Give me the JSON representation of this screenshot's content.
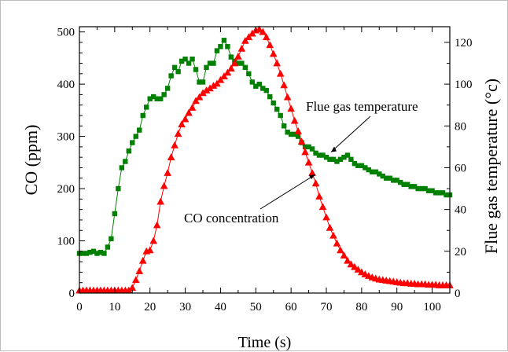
{
  "chart_data": {
    "type": "line",
    "title": "",
    "xlabel": "Time (s)",
    "ylabel": "CO  (ppm)",
    "ylabel_right": "Flue gas temperature (°c)",
    "xlim": [
      0,
      105
    ],
    "ylim": [
      0,
      510
    ],
    "ylim_right": [
      0,
      127.5
    ],
    "x_ticks": [
      "0",
      "10",
      "20",
      "30",
      "40",
      "50",
      "60",
      "70",
      "80",
      "90",
      "100"
    ],
    "y_ticks": [
      "0",
      "100",
      "200",
      "300",
      "400",
      "500"
    ],
    "y_ticks_right": [
      "0",
      "20",
      "40",
      "60",
      "80",
      "100",
      "120"
    ],
    "grid": false,
    "colors": {
      "temperature": "#008000",
      "co": "#ff0000"
    },
    "annotations": [
      {
        "text": "Flue gas temperature",
        "points_to": "Flue gas temperature series"
      },
      {
        "text": "CO concentration",
        "points_to": "CO concentration series"
      }
    ],
    "series": [
      {
        "name": "Flue gas temperature",
        "axis": "right",
        "marker": "square",
        "x": [
          0,
          1,
          2,
          3,
          4,
          5,
          6,
          7,
          8,
          9,
          10,
          11,
          12,
          13,
          14,
          15,
          16,
          17,
          18,
          19,
          20,
          21,
          22,
          23,
          24,
          25,
          26,
          27,
          28,
          29,
          30,
          31,
          32,
          33,
          34,
          35,
          36,
          37,
          38,
          39,
          40,
          41,
          42,
          43,
          44,
          45,
          46,
          47,
          48,
          49,
          50,
          51,
          52,
          53,
          54,
          55,
          56,
          57,
          58,
          59,
          60,
          61,
          62,
          63,
          64,
          65,
          66,
          67,
          68,
          69,
          70,
          71,
          72,
          73,
          74,
          75,
          76,
          77,
          78,
          79,
          80,
          81,
          82,
          83,
          84,
          85,
          86,
          87,
          88,
          89,
          90,
          91,
          92,
          93,
          94,
          95,
          96,
          97,
          98,
          99,
          100,
          101,
          102,
          103,
          104,
          105
        ],
        "y": [
          19,
          19,
          19,
          19.5,
          20,
          19,
          19.5,
          19,
          22,
          26,
          38,
          50,
          60,
          63,
          68,
          72,
          75,
          78,
          85,
          89,
          93,
          94,
          93,
          93,
          95,
          98,
          104,
          108,
          106,
          111,
          112,
          110,
          112,
          107,
          101,
          101,
          108,
          110,
          110,
          116,
          118,
          121,
          118,
          113,
          111,
          110,
          110,
          108,
          105,
          101,
          99,
          100,
          98,
          97,
          94,
          91,
          88,
          85,
          80,
          77,
          76,
          76,
          75,
          72,
          70,
          70,
          69,
          67,
          66,
          66,
          65,
          64,
          64,
          63,
          64,
          65,
          66,
          64,
          62,
          61,
          61,
          60,
          59,
          58,
          58,
          57,
          56,
          55,
          55,
          54,
          54,
          53,
          52,
          52,
          51,
          51,
          50,
          50,
          50,
          49,
          49,
          48,
          48,
          48,
          47,
          47
        ]
      },
      {
        "name": "CO concentration",
        "axis": "left",
        "marker": "triangle",
        "x": [
          0,
          1,
          2,
          3,
          4,
          5,
          6,
          7,
          8,
          9,
          10,
          11,
          12,
          13,
          14,
          15,
          16,
          17,
          18,
          19,
          20,
          21,
          22,
          23,
          24,
          25,
          26,
          27,
          28,
          29,
          30,
          31,
          32,
          33,
          34,
          35,
          36,
          37,
          38,
          39,
          40,
          41,
          42,
          43,
          44,
          45,
          46,
          47,
          48,
          49,
          50,
          51,
          52,
          53,
          54,
          55,
          56,
          57,
          58,
          59,
          60,
          61,
          62,
          63,
          64,
          65,
          66,
          67,
          68,
          69,
          70,
          71,
          72,
          73,
          74,
          75,
          76,
          77,
          78,
          79,
          80,
          81,
          82,
          83,
          84,
          85,
          86,
          87,
          88,
          89,
          90,
          91,
          92,
          93,
          94,
          95,
          96,
          97,
          98,
          99,
          100,
          101,
          102,
          103,
          104,
          105
        ],
        "y": [
          5,
          5,
          5,
          5,
          5,
          5,
          5,
          5,
          5,
          5,
          5,
          5,
          5,
          5,
          5,
          10,
          25,
          42,
          62,
          80,
          82,
          100,
          130,
          175,
          205,
          230,
          260,
          283,
          305,
          323,
          333,
          345,
          355,
          368,
          375,
          383,
          388,
          392,
          397,
          401,
          408,
          415,
          422,
          430,
          440,
          453,
          468,
          483,
          490,
          497,
          503,
          505,
          500,
          490,
          475,
          458,
          440,
          420,
          398,
          375,
          353,
          330,
          310,
          290,
          270,
          250,
          230,
          210,
          185,
          165,
          145,
          125,
          110,
          95,
          82,
          72,
          62,
          55,
          50,
          45,
          40,
          36,
          33,
          30,
          28,
          26,
          25,
          24,
          23,
          22,
          21,
          20,
          19,
          19,
          18,
          18,
          17,
          17,
          17,
          16,
          16,
          16,
          15,
          15,
          15,
          15
        ]
      }
    ]
  }
}
